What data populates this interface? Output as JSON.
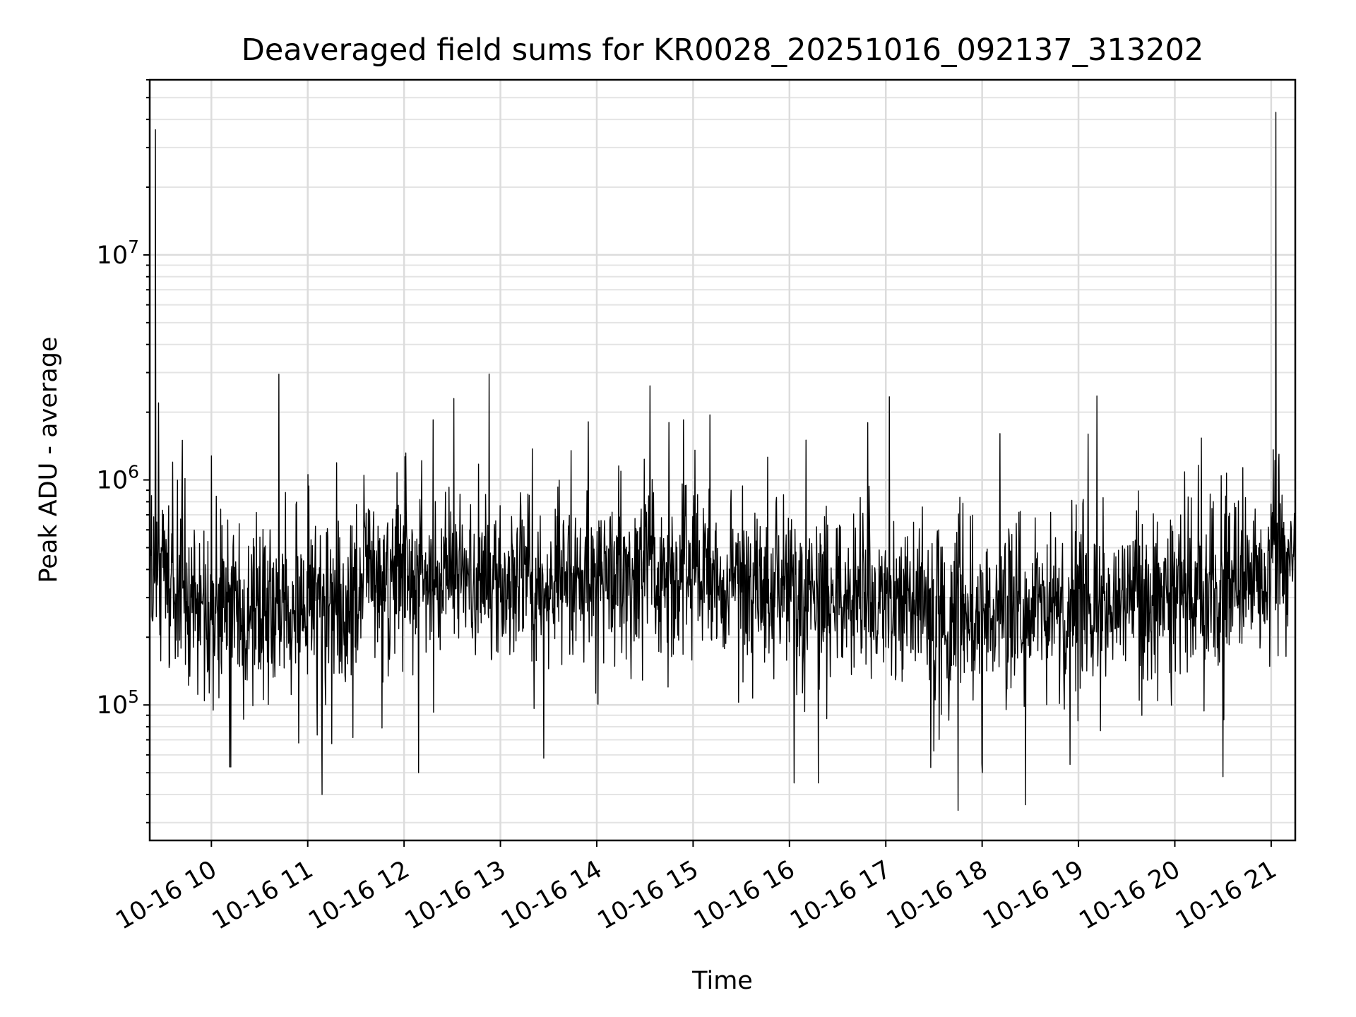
{
  "chart_data": {
    "type": "line",
    "title": "Deaveraged field sums for KR0028_20251016_092137_313202",
    "xlabel": "Time",
    "ylabel": "Peak ADU - average",
    "yscale": "log",
    "ylim": [
      25000,
      60000000
    ],
    "xlim": [
      9.36,
      21.25
    ],
    "grid": true,
    "line_color": "#000000",
    "x_ticks": [
      {
        "value": 10,
        "label": "10-16 10"
      },
      {
        "value": 11,
        "label": "10-16 11"
      },
      {
        "value": 12,
        "label": "10-16 12"
      },
      {
        "value": 13,
        "label": "10-16 13"
      },
      {
        "value": 14,
        "label": "10-16 14"
      },
      {
        "value": 15,
        "label": "10-16 15"
      },
      {
        "value": 16,
        "label": "10-16 16"
      },
      {
        "value": 17,
        "label": "10-16 17"
      },
      {
        "value": 18,
        "label": "10-16 18"
      },
      {
        "value": 19,
        "label": "10-16 19"
      },
      {
        "value": 20,
        "label": "10-16 20"
      },
      {
        "value": 21,
        "label": "10-16 21"
      }
    ],
    "y_ticks": [
      {
        "value": 100000,
        "base": "10",
        "exp": "5"
      },
      {
        "value": 1000000,
        "base": "10",
        "exp": "6"
      },
      {
        "value": 10000000,
        "base": "10",
        "exp": "7"
      }
    ],
    "series": [
      {
        "name": "Peak ADU - average",
        "baseline": [
          [
            9.36,
            380000
          ],
          [
            9.7,
            360000
          ],
          [
            10.0,
            230000
          ],
          [
            10.4,
            260000
          ],
          [
            10.8,
            290000
          ],
          [
            11.2,
            260000
          ],
          [
            11.6,
            330000
          ],
          [
            12.0,
            380000
          ],
          [
            12.5,
            370000
          ],
          [
            13.0,
            360000
          ],
          [
            13.5,
            340000
          ],
          [
            14.0,
            360000
          ],
          [
            14.5,
            400000
          ],
          [
            15.0,
            380000
          ],
          [
            15.5,
            340000
          ],
          [
            16.0,
            330000
          ],
          [
            16.4,
            300000
          ],
          [
            16.8,
            290000
          ],
          [
            17.2,
            280000
          ],
          [
            17.6,
            270000
          ],
          [
            18.0,
            270000
          ],
          [
            18.5,
            260000
          ],
          [
            19.0,
            270000
          ],
          [
            19.5,
            280000
          ],
          [
            20.0,
            300000
          ],
          [
            20.5,
            330000
          ],
          [
            20.9,
            380000
          ],
          [
            21.05,
            460000
          ],
          [
            21.25,
            450000
          ]
        ],
        "spikes": [
          [
            9.42,
            36000000
          ],
          [
            9.45,
            2200000
          ],
          [
            10.7,
            2950000
          ],
          [
            12.3,
            1850000
          ],
          [
            14.75,
            1800000
          ],
          [
            14.9,
            1850000
          ],
          [
            19.1,
            1600000
          ],
          [
            21.05,
            43000000
          ],
          [
            21.08,
            1300000
          ],
          [
            21.0,
            780000
          ],
          [
            9.7,
            1500000
          ],
          [
            10.0,
            1280000
          ]
        ],
        "dips": [
          [
            10.2,
            53000
          ],
          [
            11.15,
            40000
          ],
          [
            12.15,
            50000
          ],
          [
            13.45,
            58000
          ],
          [
            16.05,
            45000
          ],
          [
            16.3,
            45000
          ],
          [
            17.75,
            34000
          ],
          [
            18.45,
            36000
          ],
          [
            18.0,
            50000
          ],
          [
            20.5,
            48000
          ]
        ]
      }
    ]
  }
}
